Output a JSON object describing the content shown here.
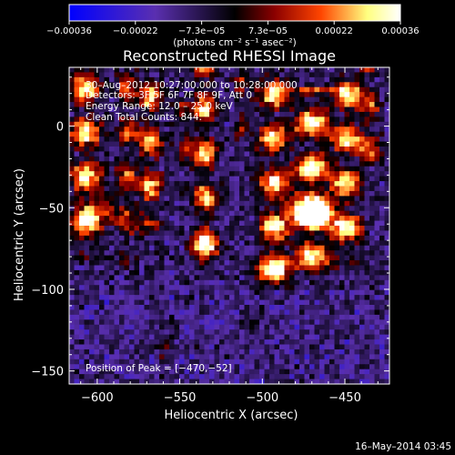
{
  "chart_data": {
    "type": "heatmap",
    "title": "Reconstructed RHESSI Image",
    "xlabel": "Heliocentric X (arcsec)",
    "ylabel": "Heliocentric Y (arcsec)",
    "xlim": [
      -617,
      -423
    ],
    "ylim": [
      -158,
      36
    ],
    "xticks": [
      -600,
      -550,
      -500,
      -450
    ],
    "yticks": [
      -150,
      -100,
      -50,
      0
    ],
    "xtick_labels": [
      "−600",
      "−550",
      "−500",
      "−450"
    ],
    "ytick_labels": [
      "−150",
      "−100",
      "−50",
      "0"
    ],
    "colorbar": {
      "min": -0.00036,
      "max": 0.00036,
      "tick_labels": [
        "−0.00036",
        "−0.00022",
        "−7.3e−05",
        "7.3e−05",
        "0.00022",
        "0.00036"
      ],
      "unit_label": "(photons cm⁻² s⁻¹ asec⁻²)",
      "colors": [
        "#0000ff",
        "#5a2fb0",
        "#000000",
        "#8b0000",
        "#ff4500",
        "#ffff80",
        "#ffffff"
      ]
    },
    "annotation": {
      "time_range": "30–Aug–2012 10:27:00.000 to 10:28:00.000",
      "detectors": "Detectors: 3F 5F 6F 7F 8F 9F, Att 0",
      "energy_range": "Energy Range: 12.0 – 25.0 keV",
      "clean_counts": "Clean     Total Counts: 844.",
      "peak_position": "Position of Peak = [−470,−52]"
    },
    "peak": {
      "x": -470,
      "y": -52
    },
    "map_grid": {
      "nx": 64,
      "ny": 64,
      "description": "Mostly negative purple/blue background with several bright vertical streaks at x≈-607, -568, -535, -493, -470, -449 arcsec; brightest peak near (-470, -52)."
    }
  },
  "footer": {
    "date": "16–May–2014 03:45"
  }
}
